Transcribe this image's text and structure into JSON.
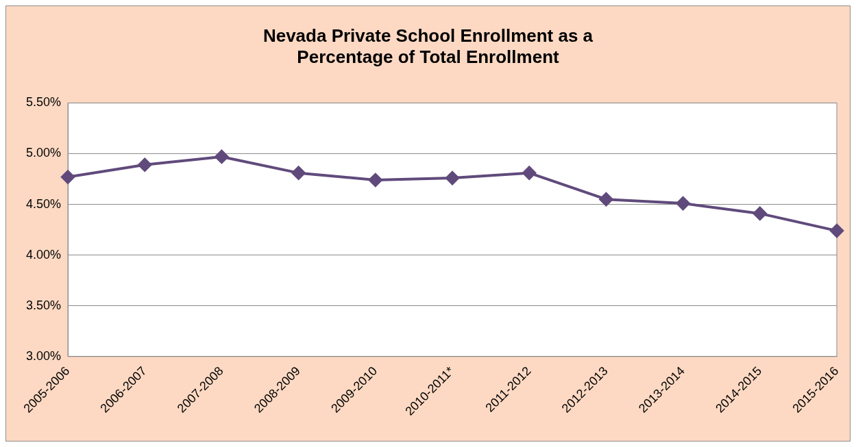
{
  "chart_data": {
    "type": "line",
    "title": [
      "Nevada Private School Enrollment as a",
      "Percentage of Total Enrollment"
    ],
    "categories": [
      "2005-2006",
      "2006-2007",
      "2007-2008",
      "2008-2009",
      "2009-2010",
      "2010-2011*",
      "2011-2012",
      "2012-2013",
      "2013-2014",
      "2014-2015",
      "2015-2016"
    ],
    "series": [
      {
        "color": "#604a7b",
        "values": [
          4.77,
          4.89,
          4.97,
          4.81,
          4.74,
          4.76,
          4.81,
          4.55,
          4.51,
          4.41,
          4.24
        ]
      }
    ],
    "ylim": [
      3,
      5.5
    ],
    "yticks": [
      {
        "value": 3,
        "label": "3.00%"
      },
      {
        "value": 3.5,
        "label": "3.50%"
      },
      {
        "value": 4,
        "label": "4.00%"
      },
      {
        "value": 4.5,
        "label": "4.50%"
      },
      {
        "value": 5,
        "label": "5.00%"
      },
      {
        "value": 5.5,
        "label": "5.50%"
      }
    ],
    "grid": "y",
    "legend": false,
    "marker": "diamond",
    "line_style": "solid"
  }
}
